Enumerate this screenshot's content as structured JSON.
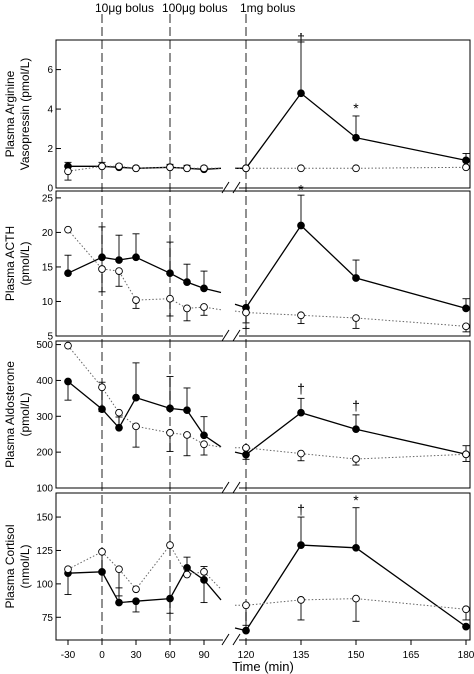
{
  "chart_data": {
    "type": "line",
    "x_axis": {
      "label": "Time (min)",
      "ticks_left": [
        -30,
        0,
        30,
        60,
        90
      ],
      "ticks_right": [
        120,
        135,
        150,
        165,
        180
      ],
      "break_between": [
        105,
        117
      ]
    },
    "bolus_markers": [
      {
        "label": "10μg bolus",
        "x": 0
      },
      {
        "label": "100μg bolus",
        "x": 60
      },
      {
        "label": "1mg bolus",
        "x": 120
      }
    ],
    "panels": [
      {
        "ylabel_lines": [
          "Plasma Arginine",
          "Vasopressin (pmol/L)"
        ],
        "ylim": [
          0,
          7.5
        ],
        "yticks": [
          0,
          2,
          4,
          6
        ],
        "series": [
          {
            "style": "solid-filled",
            "left": {
              "x": [
                -30,
                0,
                15,
                30,
                60,
                75,
                90,
                105
              ],
              "y": [
                1.1,
                1.1,
                1.05,
                1.0,
                1.05,
                1.0,
                0.95,
                1.0
              ],
              "err": [
                0.2,
                0.2,
                0.15,
                0.1,
                0.15,
                0.15,
                0.15,
                0
              ],
              "dot": [
                true,
                true,
                true,
                true,
                true,
                true,
                true,
                false
              ]
            },
            "right": {
              "x": [
                117,
                120,
                135,
                150,
                180
              ],
              "y": [
                1.0,
                1.0,
                4.8,
                2.55,
                1.4
              ],
              "err": [
                0,
                0.05,
                2.6,
                1.1,
                0.35
              ],
              "dot": [
                false,
                true,
                true,
                true,
                true
              ]
            }
          },
          {
            "style": "dotted-open",
            "left": {
              "x": [
                -30,
                0,
                15,
                30,
                60,
                75,
                90,
                105
              ],
              "y": [
                0.85,
                1.1,
                1.1,
                1.0,
                1.05,
                1.0,
                1.0,
                1.0
              ],
              "err": [
                -0.45,
                0,
                0,
                0,
                0,
                0,
                0,
                0
              ],
              "dot": [
                true,
                true,
                true,
                true,
                true,
                true,
                true,
                false
              ]
            },
            "right": {
              "x": [
                117,
                120,
                135,
                150,
                180
              ],
              "y": [
                1.0,
                1.0,
                1.0,
                1.0,
                1.05
              ],
              "err": [
                0,
                0,
                0,
                0,
                0
              ],
              "dot": [
                false,
                true,
                true,
                true,
                true
              ]
            }
          }
        ],
        "annotations": [
          {
            "text": "†",
            "x": 135,
            "y": 7.55
          },
          {
            "text": "*",
            "x": 150,
            "y": 4.0
          }
        ]
      },
      {
        "ylabel_lines": [
          "Plasma ACTH",
          "(pmol/L)"
        ],
        "ylim": [
          5,
          26
        ],
        "yticks": [
          5,
          10,
          15,
          20,
          25
        ],
        "series": [
          {
            "style": "solid-filled",
            "left": {
              "x": [
                -30,
                0,
                15,
                30,
                60,
                75,
                90,
                105
              ],
              "y": [
                14.1,
                16.4,
                16.0,
                16.4,
                14.1,
                12.8,
                11.9,
                11.3
              ],
              "err": [
                2.6,
                4.4,
                3.6,
                3.4,
                4.5,
                2.6,
                2.5,
                0
              ],
              "dot": [
                true,
                true,
                true,
                true,
                true,
                true,
                true,
                false
              ]
            },
            "right": {
              "x": [
                117,
                120,
                135,
                150,
                180
              ],
              "y": [
                9.6,
                9.1,
                21.0,
                13.4,
                9.0
              ],
              "err": [
                0,
                -3.0,
                4.4,
                2.6,
                1.4
              ],
              "dot": [
                false,
                true,
                true,
                true,
                true
              ]
            }
          },
          {
            "style": "dotted-open",
            "left": {
              "x": [
                -30,
                0,
                15,
                30,
                60,
                75,
                90,
                105
              ],
              "y": [
                20.4,
                14.7,
                14.4,
                10.2,
                10.4,
                9.0,
                9.2,
                8.8
              ],
              "err": [
                0,
                -3.3,
                -2.2,
                -1.2,
                -2.5,
                -1.8,
                -1.2,
                0
              ],
              "dot": [
                true,
                true,
                true,
                true,
                true,
                true,
                true,
                false
              ]
            },
            "right": {
              "x": [
                117,
                120,
                135,
                150,
                180
              ],
              "y": [
                8.6,
                8.4,
                8.0,
                7.6,
                6.4
              ],
              "err": [
                0,
                -1.5,
                -1.2,
                -1.5,
                -0.8
              ],
              "dot": [
                false,
                true,
                true,
                true,
                true
              ]
            }
          }
        ],
        "annotations": [
          {
            "text": "*",
            "x": 135,
            "y": 26.1
          }
        ]
      },
      {
        "ylabel_lines": [
          "Plasma Aldosterone",
          "(pmol/L)"
        ],
        "ylim": [
          100,
          510
        ],
        "yticks": [
          100,
          200,
          300,
          400,
          500
        ],
        "series": [
          {
            "style": "solid-filled",
            "left": {
              "x": [
                -30,
                0,
                15,
                30,
                60,
                75,
                90,
                105
              ],
              "y": [
                397,
                320,
                268,
                352,
                322,
                317,
                247,
                215
              ],
              "err": [
                -52,
                75,
                30,
                97,
                89,
                62,
                52,
                0
              ],
              "dot": [
                true,
                true,
                true,
                true,
                true,
                true,
                true,
                false
              ]
            },
            "right": {
              "x": [
                117,
                120,
                135,
                150,
                180
              ],
              "y": [
                200,
                193,
                310,
                264,
                194
              ],
              "err": [
                0,
                -13,
                40,
                40,
                24
              ],
              "dot": [
                false,
                true,
                true,
                true,
                true
              ]
            }
          },
          {
            "style": "dotted-open",
            "left": {
              "x": [
                -30,
                0,
                15,
                30,
                60,
                75,
                90,
                105
              ],
              "y": [
                497,
                381,
                310,
                272,
                254,
                248,
                222,
                214
              ],
              "err": [
                0,
                -68,
                -42,
                -58,
                -52,
                -58,
                -30,
                0
              ],
              "dot": [
                true,
                true,
                true,
                true,
                true,
                true,
                true,
                false
              ]
            },
            "right": {
              "x": [
                117,
                120,
                135,
                150,
                180
              ],
              "y": [
                212,
                212,
                196,
                181,
                194
              ],
              "err": [
                0,
                0,
                -20,
                -17,
                -20
              ],
              "dot": [
                false,
                true,
                true,
                true,
                true
              ]
            }
          }
        ],
        "annotations": [
          {
            "text": "†",
            "x": 135,
            "y": 375
          },
          {
            "text": "†",
            "x": 150,
            "y": 328
          }
        ]
      },
      {
        "ylabel_lines": [
          "Plasma Cortisol",
          "(nmol/L)"
        ],
        "ylim": [
          58,
          168
        ],
        "yticks": [
          75,
          100,
          125,
          150
        ],
        "series": [
          {
            "style": "solid-filled",
            "left": {
              "x": [
                -30,
                0,
                15,
                30,
                60,
                75,
                90,
                105
              ],
              "y": [
                108,
                109,
                86,
                87,
                89,
                112,
                103,
                88
              ],
              "err": [
                -16,
                15,
                11,
                -8,
                -11,
                8,
                10,
                0
              ],
              "dot": [
                true,
                true,
                true,
                true,
                true,
                true,
                true,
                false
              ]
            },
            "right": {
              "x": [
                117,
                120,
                135,
                150,
                180
              ],
              "y": [
                67,
                65,
                129,
                127,
                68
              ],
              "err": [
                0,
                0,
                21,
                30,
                0
              ],
              "dot": [
                false,
                true,
                true,
                true,
                true
              ]
            }
          },
          {
            "style": "dotted-open",
            "left": {
              "x": [
                -30,
                0,
                15,
                30,
                60,
                75,
                90,
                105
              ],
              "y": [
                111,
                124,
                111,
                96,
                129,
                107,
                109,
                96
              ],
              "err": [
                0,
                0,
                -20,
                0,
                0,
                0,
                -23,
                0
              ],
              "dot": [
                true,
                true,
                true,
                true,
                true,
                true,
                true,
                false
              ]
            },
            "right": {
              "x": [
                117,
                120,
                135,
                150,
                180
              ],
              "y": [
                84,
                84,
                88,
                89,
                81
              ],
              "err": [
                0,
                -15,
                -15,
                -17,
                -8
              ],
              "dot": [
                false,
                true,
                true,
                true,
                true
              ]
            }
          }
        ],
        "annotations": [
          {
            "text": "†",
            "x": 135,
            "y": 155
          },
          {
            "text": "*",
            "x": 150,
            "y": 162
          }
        ]
      }
    ]
  }
}
